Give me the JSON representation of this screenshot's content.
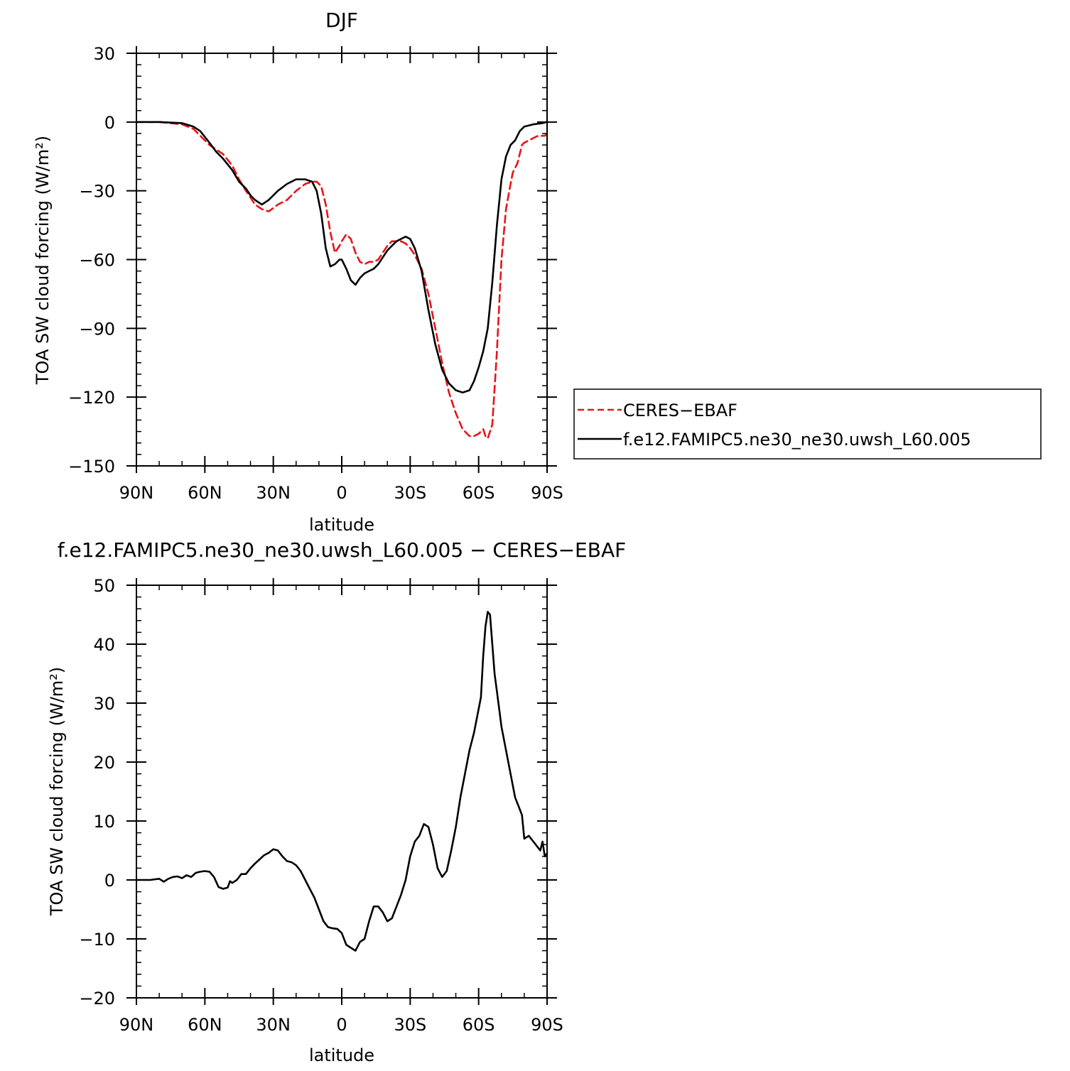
{
  "chart_data": [
    {
      "type": "line",
      "title": "DJF",
      "xlabel": "latitude",
      "ylabel": "TOA SW cloud forcing (W/m²)",
      "xlim": [
        90,
        -90
      ],
      "ylim": [
        -150,
        30
      ],
      "xticks": [
        90,
        60,
        30,
        0,
        -30,
        -60,
        -90
      ],
      "xtick_labels": [
        "90N",
        "60N",
        "30N",
        "0",
        "30S",
        "60S",
        "90S"
      ],
      "yticks": [
        30,
        0,
        -30,
        -60,
        -90,
        -120,
        -150
      ],
      "ytick_labels": [
        "30",
        "0",
        "−30",
        "−60",
        "−90",
        "−120",
        "−150"
      ],
      "legend": {
        "placement": "right"
      },
      "series": [
        {
          "name": "CERES−EBAF",
          "color": "#e8141a",
          "dash": "dashed",
          "x": [
            90,
            80,
            70,
            65,
            62,
            58,
            55,
            52,
            48,
            45,
            42,
            40,
            38,
            35,
            32,
            28,
            24,
            20,
            16,
            13,
            11,
            9,
            7,
            5,
            3,
            1,
            0,
            -2,
            -4,
            -6,
            -8,
            -10,
            -12,
            -14,
            -16,
            -18,
            -20,
            -22,
            -24,
            -26,
            -28,
            -30,
            -32,
            -35,
            -38,
            -41,
            -44,
            -47,
            -50,
            -53,
            -56,
            -58,
            -60,
            -61,
            -62,
            -63,
            -64,
            -66,
            -68,
            -70,
            -72,
            -74,
            -75,
            -76,
            -77,
            -78,
            -79,
            -80,
            -82,
            -84,
            -86,
            -88,
            -89,
            -90
          ],
          "y": [
            0,
            0,
            -1,
            -3,
            -6,
            -10,
            -12,
            -14,
            -19,
            -25,
            -30,
            -33,
            -36,
            -38,
            -39,
            -36,
            -34,
            -30,
            -27,
            -26,
            -26,
            -28,
            -36,
            -48,
            -57,
            -54,
            -52,
            -49,
            -51,
            -57,
            -61,
            -62,
            -61,
            -61,
            -60,
            -57,
            -54,
            -52,
            -52,
            -52,
            -53,
            -55,
            -58,
            -64,
            -75,
            -90,
            -105,
            -118,
            -127,
            -134,
            -137,
            -137,
            -136,
            -135,
            -134,
            -137,
            -138,
            -132,
            -100,
            -60,
            -38,
            -27,
            -22,
            -20,
            -18,
            -14,
            -10,
            -9,
            -8,
            -7,
            -6,
            -6,
            -6,
            -5
          ]
        },
        {
          "name": "f.e12.FAMIPC5.ne30_ne30.uwsh_L60.005",
          "color": "#000000",
          "dash": "solid",
          "x": [
            90,
            80,
            70,
            65,
            62,
            58,
            55,
            52,
            48,
            45,
            42,
            40,
            38,
            35,
            32,
            28,
            24,
            20,
            16,
            13,
            11,
            9,
            7,
            5,
            3,
            1,
            0,
            -2,
            -4,
            -6,
            -8,
            -10,
            -12,
            -14,
            -16,
            -18,
            -20,
            -22,
            -24,
            -26,
            -28,
            -30,
            -32,
            -35,
            -38,
            -41,
            -44,
            -47,
            -50,
            -53,
            -56,
            -58,
            -60,
            -62,
            -64,
            -66,
            -68,
            -70,
            -72,
            -74,
            -76,
            -78,
            -80,
            -84,
            -88,
            -90
          ],
          "y": [
            0,
            0,
            -0.5,
            -2,
            -4,
            -9,
            -13,
            -16,
            -21,
            -26,
            -29,
            -32,
            -34,
            -36,
            -34,
            -30,
            -27,
            -25,
            -25,
            -26,
            -30,
            -40,
            -55,
            -63,
            -62,
            -60,
            -60,
            -64,
            -69,
            -71,
            -68,
            -66,
            -65,
            -64,
            -62,
            -59,
            -56,
            -54,
            -52,
            -51,
            -50,
            -51,
            -55,
            -65,
            -82,
            -97,
            -108,
            -114,
            -117,
            -118,
            -117,
            -113,
            -107,
            -100,
            -90,
            -70,
            -45,
            -25,
            -15,
            -10,
            -8,
            -4,
            -2,
            -1,
            -0.5,
            0
          ]
        }
      ]
    },
    {
      "type": "line",
      "title": "f.e12.FAMIPC5.ne30_ne30.uwsh_L60.005 − CERES−EBAF",
      "xlabel": "latitude",
      "ylabel": "TOA SW cloud forcing (W/m²)",
      "xlim": [
        90,
        -90
      ],
      "ylim": [
        -20,
        50
      ],
      "xticks": [
        90,
        60,
        30,
        0,
        -30,
        -60,
        -90
      ],
      "xtick_labels": [
        "90N",
        "60N",
        "30N",
        "0",
        "30S",
        "60S",
        "90S"
      ],
      "yticks": [
        50,
        40,
        30,
        20,
        10,
        0,
        -10,
        -20
      ],
      "ytick_labels": [
        "50",
        "40",
        "30",
        "20",
        "10",
        "0",
        "−10",
        "−20"
      ],
      "series": [
        {
          "color": "#000000",
          "dash": "solid",
          "x": [
            90,
            84,
            80,
            78,
            76,
            74,
            72,
            70,
            68,
            66,
            64,
            62,
            60,
            58,
            56,
            54,
            52,
            50,
            49,
            48,
            46,
            44,
            42,
            40,
            38,
            36,
            34,
            32,
            30,
            28,
            26,
            24,
            22,
            20,
            18,
            16,
            14,
            12,
            10,
            8,
            6,
            4,
            2,
            0,
            -2,
            -4,
            -6,
            -8,
            -10,
            -12,
            -14,
            -16,
            -18,
            -20,
            -22,
            -24,
            -26,
            -28,
            -30,
            -32,
            -34,
            -36,
            -38,
            -40,
            -42,
            -44,
            -46,
            -48,
            -50,
            -52,
            -54,
            -56,
            -58,
            -60,
            -61,
            -62,
            -63,
            -64,
            -65,
            -66,
            -67,
            -68,
            -70,
            -72,
            -74,
            -76,
            -78,
            -79,
            -80,
            -82,
            -84,
            -86,
            -87,
            -88,
            -89,
            -90
          ],
          "y": [
            0,
            0,
            0.2,
            -0.3,
            0.2,
            0.5,
            0.6,
            0.3,
            0.8,
            0.5,
            1.2,
            1.4,
            1.5,
            1.4,
            0.5,
            -1.2,
            -1.5,
            -1.3,
            -0.2,
            -0.5,
            0,
            1.0,
            1.0,
            2.0,
            2.8,
            3.5,
            4.2,
            4.6,
            5.2,
            5.0,
            4.0,
            3.2,
            3.0,
            2.5,
            1.5,
            0,
            -1.5,
            -3.0,
            -5.0,
            -7.0,
            -8.0,
            -8.2,
            -8.3,
            -9.0,
            -11.0,
            -11.5,
            -12.0,
            -10.5,
            -10.0,
            -7.0,
            -4.5,
            -4.5,
            -5.5,
            -7.0,
            -6.5,
            -4.5,
            -2.5,
            0,
            4.0,
            6.5,
            7.5,
            9.5,
            9.0,
            6.0,
            2.0,
            0.5,
            1.5,
            5.0,
            9.0,
            14.0,
            18.0,
            22.0,
            25.0,
            29.0,
            31.0,
            38.0,
            43.0,
            45.5,
            45.0,
            40.0,
            35.0,
            32.0,
            26.0,
            22.0,
            18.0,
            14.0,
            12.0,
            11.0,
            7.0,
            7.5,
            6.5,
            5.5,
            5.0,
            6.5,
            4.0,
            4.5
          ]
        }
      ]
    }
  ]
}
